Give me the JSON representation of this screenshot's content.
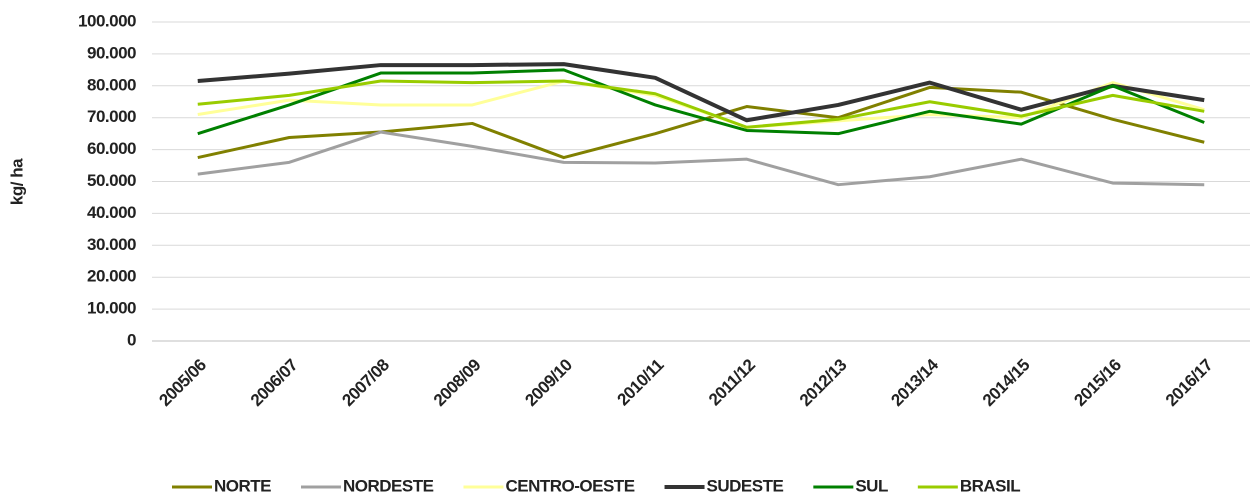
{
  "chart_data": {
    "type": "line",
    "y_label": "kg/ ha",
    "categories": [
      "2005/06",
      "2006/07",
      "2007/08",
      "2008/09",
      "2009/10",
      "2010/11",
      "2011/12",
      "2012/13",
      "2013/14",
      "2014/15",
      "2015/16",
      "2016/17"
    ],
    "series": [
      {
        "name": "NORTE",
        "color": "#808000",
        "values": [
          57500,
          63800,
          65500,
          68200,
          57500,
          65000,
          73500,
          70000,
          79500,
          78000,
          69500,
          62300
        ]
      },
      {
        "name": "NORDESTE",
        "color": "#a0a0a0",
        "values": [
          52300,
          56000,
          65500,
          61000,
          56000,
          55800,
          57000,
          49000,
          51500,
          57000,
          49500,
          49000
        ]
      },
      {
        "name": "CENTRO-OESTE",
        "color": "#ffff99",
        "values": [
          71000,
          75500,
          74000,
          74000,
          81500,
          77000,
          67000,
          69000,
          71000,
          70000,
          81000,
          72500
        ]
      },
      {
        "name": "SUDESTE",
        "color": "#333333",
        "values": [
          81500,
          83800,
          86500,
          86500,
          86800,
          82500,
          69200,
          74000,
          81000,
          72500,
          80000,
          75500
        ]
      },
      {
        "name": "SUL",
        "color": "#008000",
        "values": [
          65000,
          74000,
          84000,
          84000,
          85000,
          74000,
          66000,
          65000,
          72000,
          68000,
          80000,
          68500
        ]
      },
      {
        "name": "BRASIL",
        "color": "#99cc00",
        "values": [
          74200,
          77000,
          81500,
          81000,
          81500,
          77500,
          67000,
          69500,
          75000,
          70500,
          77000,
          72000
        ]
      }
    ],
    "ylim": [
      0,
      100000
    ],
    "yticks": [
      0,
      {
        "value": 10000,
        "label": "10.000"
      },
      {
        "value": 20000,
        "label": "20.000"
      },
      {
        "value": 30000,
        "label": "30.000"
      },
      {
        "value": 40000,
        "label": "40.000"
      },
      {
        "value": 50000,
        "label": "50.000"
      },
      {
        "value": 60000,
        "label": "60.000"
      },
      {
        "value": 70000,
        "label": "70.000"
      },
      {
        "value": 80000,
        "label": "80.000"
      },
      {
        "value": 90000,
        "label": "90.000"
      },
      {
        "value": 100000,
        "label": "100.000"
      }
    ],
    "grid": true,
    "legend": "bottom"
  }
}
